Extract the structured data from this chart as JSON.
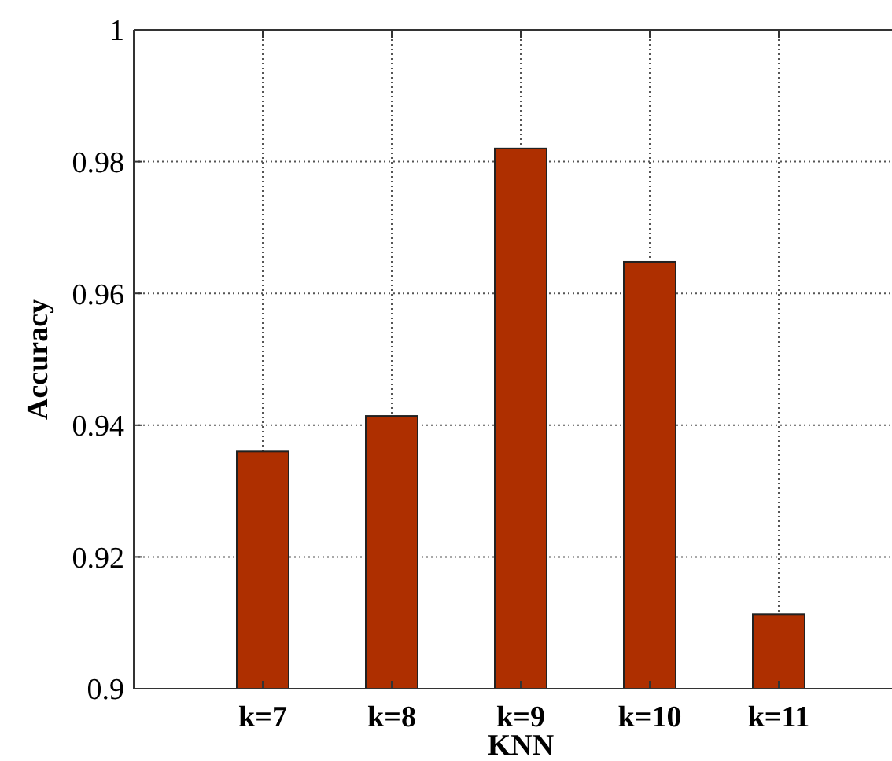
{
  "chart_data": {
    "type": "bar",
    "xlabel": "KNN",
    "ylabel": "Accuracy",
    "categories": [
      "k=7",
      "k=8",
      "k=9",
      "k=10",
      "k=11"
    ],
    "values": [
      0.936,
      0.9414,
      0.982,
      0.9648,
      0.9113
    ],
    "color": "#ae2f00",
    "ylim": [
      0.9,
      1
    ],
    "yticks": [
      0.9,
      0.92,
      0.94,
      0.96,
      0.98,
      1
    ],
    "grid": true
  }
}
